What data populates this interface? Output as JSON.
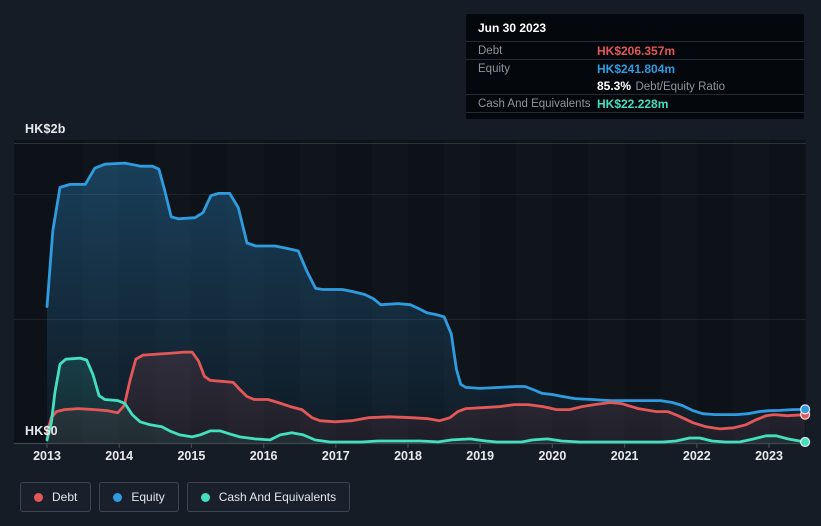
{
  "colors": {
    "debt": "#e45757",
    "equity": "#2f9ce0",
    "cash": "#43dfbf"
  },
  "y_axis": {
    "top_label": "HK$2b",
    "zero_label": "HK$0"
  },
  "x_axis": {
    "years": [
      "2013",
      "2014",
      "2015",
      "2016",
      "2017",
      "2018",
      "2019",
      "2020",
      "2021",
      "2022",
      "2023"
    ]
  },
  "tooltip": {
    "title": "Jun 30 2023",
    "debt_label": "Debt",
    "debt_value": "HK$206.357m",
    "equity_label": "Equity",
    "equity_value": "HK$241.804m",
    "ratio_value": "85.3%",
    "ratio_label": "Debt/Equity Ratio",
    "cash_label": "Cash And Equivalents",
    "cash_value": "HK$22.228m"
  },
  "legend": {
    "items": [
      {
        "key": "debt",
        "label": "Debt"
      },
      {
        "key": "equity",
        "label": "Equity"
      },
      {
        "key": "cash",
        "label": "Cash And Equivalents"
      }
    ]
  },
  "chart_data": {
    "type": "area",
    "unit": "HK$ millions",
    "x_range": [
      2013,
      2023.5
    ],
    "ylim": [
      0,
      2000
    ],
    "y_ticks": [
      "HK$2b",
      "HK$0"
    ],
    "grid": "horizontal",
    "legend_position": "bottom",
    "last_point_date": "Jun 30 2023",
    "series": [
      {
        "key": "equity",
        "name": "Equity",
        "points": [
          [
            2013,
            920
          ],
          [
            2013.08,
            1420
          ],
          [
            2013.18,
            1707
          ],
          [
            2013.32,
            1727
          ],
          [
            2013.53,
            1727
          ],
          [
            2013.66,
            1833
          ],
          [
            2013.8,
            1860
          ],
          [
            2014.08,
            1867
          ],
          [
            2014.3,
            1847
          ],
          [
            2014.46,
            1847
          ],
          [
            2014.55,
            1827
          ],
          [
            2014.63,
            1687
          ],
          [
            2014.72,
            1513
          ],
          [
            2014.82,
            1500
          ],
          [
            2015.05,
            1507
          ],
          [
            2015.16,
            1540
          ],
          [
            2015.27,
            1653
          ],
          [
            2015.38,
            1667
          ],
          [
            2015.53,
            1667
          ],
          [
            2015.65,
            1573
          ],
          [
            2015.77,
            1340
          ],
          [
            2015.89,
            1320
          ],
          [
            2016.16,
            1320
          ],
          [
            2016.37,
            1300
          ],
          [
            2016.48,
            1287
          ],
          [
            2016.6,
            1153
          ],
          [
            2016.72,
            1040
          ],
          [
            2016.82,
            1033
          ],
          [
            2017.09,
            1033
          ],
          [
            2017.23,
            1020
          ],
          [
            2017.4,
            1000
          ],
          [
            2017.52,
            973
          ],
          [
            2017.62,
            933
          ],
          [
            2017.86,
            940
          ],
          [
            2018.03,
            933
          ],
          [
            2018.15,
            907
          ],
          [
            2018.26,
            880
          ],
          [
            2018.39,
            867
          ],
          [
            2018.5,
            853
          ],
          [
            2018.6,
            740
          ],
          [
            2018.67,
            507
          ],
          [
            2018.73,
            407
          ],
          [
            2018.8,
            387
          ],
          [
            2019,
            380
          ],
          [
            2019.27,
            387
          ],
          [
            2019.5,
            393
          ],
          [
            2019.62,
            393
          ],
          [
            2019.73,
            373
          ],
          [
            2019.86,
            347
          ],
          [
            2020,
            340
          ],
          [
            2020.14,
            327
          ],
          [
            2020.31,
            313
          ],
          [
            2020.55,
            307
          ],
          [
            2020.8,
            300
          ],
          [
            2021.5,
            300
          ],
          [
            2021.66,
            287
          ],
          [
            2021.8,
            267
          ],
          [
            2021.95,
            233
          ],
          [
            2022.08,
            213
          ],
          [
            2022.25,
            207
          ],
          [
            2022.55,
            207
          ],
          [
            2022.71,
            213
          ],
          [
            2022.86,
            227
          ],
          [
            2023,
            233
          ],
          [
            2023.15,
            235
          ],
          [
            2023.32,
            240
          ],
          [
            2023.5,
            241.8
          ]
        ]
      },
      {
        "key": "debt",
        "name": "Debt",
        "points": [
          [
            2013,
            87
          ],
          [
            2013.06,
            187
          ],
          [
            2013.13,
            227
          ],
          [
            2013.24,
            240
          ],
          [
            2013.43,
            247
          ],
          [
            2013.66,
            240
          ],
          [
            2013.84,
            233
          ],
          [
            2013.98,
            220
          ],
          [
            2014.07,
            267
          ],
          [
            2014.15,
            433
          ],
          [
            2014.23,
            573
          ],
          [
            2014.33,
            600
          ],
          [
            2014.55,
            607
          ],
          [
            2014.73,
            613
          ],
          [
            2014.9,
            620
          ],
          [
            2015.01,
            620
          ],
          [
            2015.1,
            560
          ],
          [
            2015.18,
            460
          ],
          [
            2015.26,
            433
          ],
          [
            2015.42,
            427
          ],
          [
            2015.58,
            420
          ],
          [
            2015.67,
            373
          ],
          [
            2015.77,
            327
          ],
          [
            2015.87,
            307
          ],
          [
            2016.06,
            307
          ],
          [
            2016.2,
            287
          ],
          [
            2016.37,
            260
          ],
          [
            2016.53,
            240
          ],
          [
            2016.67,
            187
          ],
          [
            2016.78,
            167
          ],
          [
            2016.99,
            160
          ],
          [
            2017.22,
            167
          ],
          [
            2017.45,
            187
          ],
          [
            2017.75,
            193
          ],
          [
            2018.05,
            187
          ],
          [
            2018.28,
            180
          ],
          [
            2018.44,
            167
          ],
          [
            2018.58,
            187
          ],
          [
            2018.69,
            227
          ],
          [
            2018.8,
            247
          ],
          [
            2019.02,
            253
          ],
          [
            2019.27,
            260
          ],
          [
            2019.47,
            273
          ],
          [
            2019.66,
            273
          ],
          [
            2019.87,
            260
          ],
          [
            2020.06,
            240
          ],
          [
            2020.24,
            240
          ],
          [
            2020.41,
            260
          ],
          [
            2020.58,
            273
          ],
          [
            2020.8,
            287
          ],
          [
            2020.96,
            280
          ],
          [
            2021.19,
            247
          ],
          [
            2021.44,
            227
          ],
          [
            2021.6,
            227
          ],
          [
            2021.74,
            200
          ],
          [
            2021.95,
            153
          ],
          [
            2022.13,
            127
          ],
          [
            2022.32,
            113
          ],
          [
            2022.51,
            120
          ],
          [
            2022.68,
            140
          ],
          [
            2022.82,
            173
          ],
          [
            2022.96,
            200
          ],
          [
            2023.07,
            207
          ],
          [
            2023.25,
            200
          ],
          [
            2023.5,
            206.4
          ]
        ]
      },
      {
        "key": "cash",
        "name": "Cash And Equivalents",
        "points": [
          [
            2013,
            40
          ],
          [
            2013.06,
            153
          ],
          [
            2013.11,
            353
          ],
          [
            2013.18,
            540
          ],
          [
            2013.26,
            573
          ],
          [
            2013.46,
            580
          ],
          [
            2013.55,
            567
          ],
          [
            2013.64,
            467
          ],
          [
            2013.72,
            333
          ],
          [
            2013.8,
            307
          ],
          [
            2013.98,
            300
          ],
          [
            2014.08,
            280
          ],
          [
            2014.18,
            207
          ],
          [
            2014.29,
            160
          ],
          [
            2014.43,
            140
          ],
          [
            2014.59,
            127
          ],
          [
            2014.7,
            100
          ],
          [
            2014.84,
            73
          ],
          [
            2015.01,
            60
          ],
          [
            2015.12,
            73
          ],
          [
            2015.26,
            100
          ],
          [
            2015.4,
            100
          ],
          [
            2015.53,
            80
          ],
          [
            2015.67,
            60
          ],
          [
            2015.88,
            47
          ],
          [
            2016.09,
            40
          ],
          [
            2016.23,
            73
          ],
          [
            2016.39,
            87
          ],
          [
            2016.55,
            73
          ],
          [
            2016.71,
            40
          ],
          [
            2016.92,
            20
          ],
          [
            2017.13,
            13
          ],
          [
            2017.36,
            20
          ],
          [
            2017.58,
            33
          ],
          [
            2017.86,
            33
          ],
          [
            2018.17,
            33
          ],
          [
            2018.42,
            27
          ],
          [
            2018.61,
            40
          ],
          [
            2018.86,
            47
          ],
          [
            2019.08,
            33
          ],
          [
            2019.23,
            13
          ],
          [
            2019.41,
            13
          ],
          [
            2019.58,
            27
          ],
          [
            2019.73,
            40
          ],
          [
            2019.93,
            47
          ],
          [
            2020.13,
            33
          ],
          [
            2020.38,
            20
          ],
          [
            2020.73,
            20
          ],
          [
            2021.21,
            20
          ],
          [
            2021.53,
            20
          ],
          [
            2021.71,
            33
          ],
          [
            2021.9,
            53
          ],
          [
            2022.04,
            53
          ],
          [
            2022.21,
            33
          ],
          [
            2022.4,
            20
          ],
          [
            2022.6,
            27
          ],
          [
            2022.79,
            47
          ],
          [
            2022.96,
            67
          ],
          [
            2023.1,
            67
          ],
          [
            2023.26,
            47
          ],
          [
            2023.5,
            22.2
          ]
        ]
      }
    ]
  }
}
